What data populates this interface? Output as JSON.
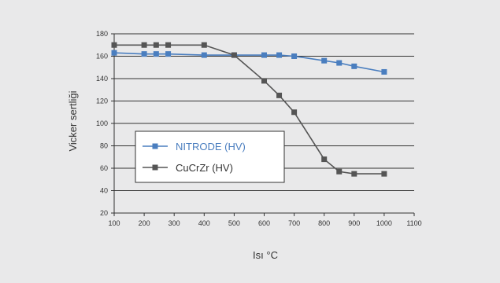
{
  "chart_data": {
    "type": "line",
    "title": "",
    "xlabel": "Isı °C",
    "ylabel": "Vicker sertliği",
    "xlim": [
      100,
      1100
    ],
    "ylim": [
      20,
      180
    ],
    "x_ticks": [
      100,
      200,
      300,
      400,
      500,
      600,
      700,
      800,
      900,
      1000,
      1100
    ],
    "y_ticks": [
      20,
      40,
      60,
      80,
      100,
      120,
      140,
      160,
      180
    ],
    "grid": "horizontal",
    "legend_position": "left-center",
    "series": [
      {
        "name": "NITRODE (HV)",
        "color": "#4a7ebf",
        "marker": "square",
        "x": [
          100,
          200,
          240,
          280,
          400,
          500,
          600,
          650,
          700,
          800,
          850,
          900,
          1000
        ],
        "y": [
          163,
          162,
          162,
          162,
          161,
          161,
          161,
          161,
          160,
          156,
          154,
          151,
          146
        ]
      },
      {
        "name": "CuCrZr (HV)",
        "color": "#555555",
        "marker": "square",
        "x": [
          100,
          200,
          240,
          280,
          400,
          500,
          600,
          650,
          700,
          800,
          850,
          900,
          1000
        ],
        "y": [
          170,
          170,
          170,
          170,
          170,
          161,
          138,
          125,
          110,
          68,
          57,
          55,
          55
        ]
      }
    ]
  }
}
